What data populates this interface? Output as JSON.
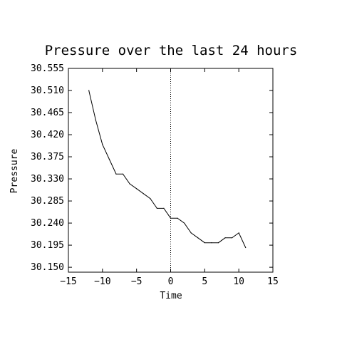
{
  "chart_data": {
    "type": "line",
    "title": "Pressure over the last 24 hours",
    "xlabel": "Time",
    "ylabel": "Pressure",
    "xlim": [
      -15,
      15
    ],
    "ylim": [
      30.14,
      30.555
    ],
    "x_ticks": [
      -15,
      -10,
      -5,
      0,
      5,
      10,
      15
    ],
    "x_tick_labels": [
      "−15",
      "−10",
      "−5",
      "0",
      "5",
      "10",
      "15"
    ],
    "y_ticks": [
      30.15,
      30.195,
      30.24,
      30.285,
      30.33,
      30.375,
      30.42,
      30.465,
      30.51,
      30.555
    ],
    "y_tick_labels": [
      "30.150",
      "30.195",
      "30.240",
      "30.285",
      "30.330",
      "30.375",
      "30.420",
      "30.465",
      "30.510",
      "30.555"
    ],
    "grid": false,
    "reference_line": {
      "x": 0,
      "style": "dotted"
    },
    "series": [
      {
        "color": "#000000",
        "x": [
          -12,
          -11,
          -10,
          -9,
          -8,
          -7,
          -6,
          -5,
          -4,
          -3,
          -2,
          -1,
          0,
          1,
          2,
          3,
          4,
          5,
          6,
          7,
          8,
          9,
          10,
          11
        ],
        "y": [
          30.51,
          30.45,
          30.4,
          30.37,
          30.34,
          30.34,
          30.32,
          30.31,
          30.3,
          30.29,
          30.27,
          30.27,
          30.25,
          30.25,
          30.24,
          30.22,
          30.21,
          30.2,
          30.2,
          30.2,
          30.21,
          30.21,
          30.22,
          30.19
        ]
      }
    ]
  }
}
